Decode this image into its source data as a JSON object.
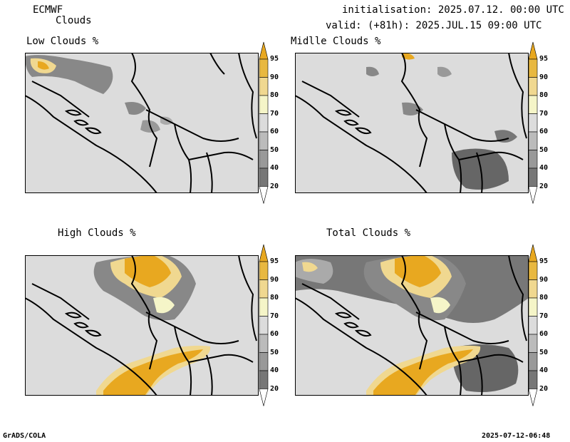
{
  "header": {
    "model": "ECMWF",
    "product": "Clouds",
    "initialisation": "initialisation: 2025.07.12. 00:00 UTC",
    "valid": "valid: (+81h): 2025.JUL.15 09:00 UTC"
  },
  "panels": {
    "low": {
      "title": "Low Clouds %"
    },
    "middle": {
      "title": "Midlle Clouds %"
    },
    "high": {
      "title": "High Clouds %"
    },
    "total": {
      "title": "Total Clouds %"
    }
  },
  "legend": {
    "levels": [
      "20",
      "40",
      "50",
      "60",
      "70",
      "80",
      "90",
      "95"
    ],
    "colors": [
      "#555555",
      "#777777",
      "#999999",
      "#bbbbbb",
      "#dcdcdc",
      "#f5f5c8",
      "#f0d890",
      "#e8b840",
      "#e8a820"
    ]
  },
  "footer": {
    "left": "GrADS/COLA",
    "right": "2025-07-12-06:48"
  }
}
